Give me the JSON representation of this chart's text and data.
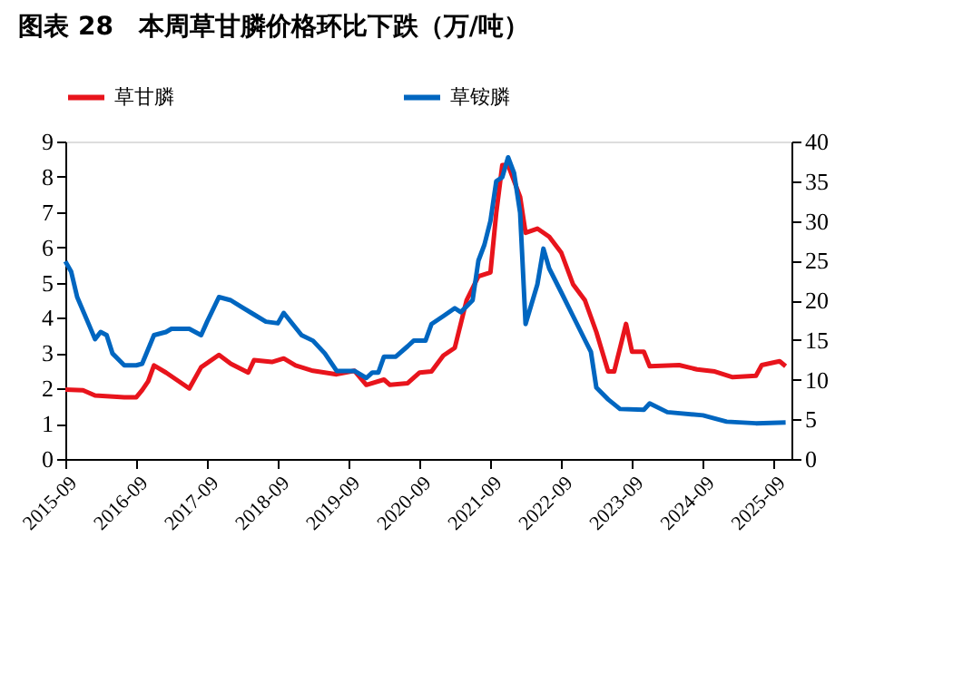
{
  "chart_data": {
    "type": "line",
    "title": "图表 28　本周草甘膦价格环比下跌（万/吨）",
    "xlim": [
      "2015-09",
      "2025-12"
    ],
    "xticks": [
      "2015-09",
      "2016-09",
      "2017-09",
      "2018-09",
      "2019-09",
      "2020-09",
      "2021-09",
      "2022-09",
      "2023-09",
      "2024-09",
      "2025-09"
    ],
    "ylim": [
      0,
      9
    ],
    "yticks": [
      0,
      1,
      2,
      3,
      4,
      5,
      6,
      7,
      8,
      9
    ],
    "y2lim": [
      0,
      40
    ],
    "y2ticks": [
      0,
      5,
      10,
      15,
      20,
      25,
      30,
      35,
      40
    ],
    "grid": false,
    "legend": "top",
    "series": [
      {
        "name": "草甘膦",
        "color": "#e8141c",
        "axis": "y",
        "x": [
          "2015-09",
          "2015-12",
          "2016-02",
          "2016-07",
          "2016-09",
          "2016-10",
          "2016-11",
          "2016-12",
          "2017-02",
          "2017-06",
          "2017-08",
          "2017-11",
          "2018-01",
          "2018-04",
          "2018-05",
          "2018-08",
          "2018-10",
          "2018-12",
          "2019-03",
          "2019-07",
          "2019-10",
          "2019-12",
          "2020-03",
          "2020-04",
          "2020-07",
          "2020-09",
          "2020-11",
          "2021-01",
          "2021-03",
          "2021-05",
          "2021-07",
          "2021-09",
          "2021-10",
          "2021-11",
          "2021-12",
          "2022-02",
          "2022-03",
          "2022-05",
          "2022-07",
          "2022-09",
          "2022-11",
          "2023-01",
          "2023-03",
          "2023-05",
          "2023-06",
          "2023-08",
          "2023-09",
          "2023-11",
          "2023-12",
          "2024-05",
          "2024-08",
          "2024-11",
          "2025-02",
          "2025-06",
          "2025-07",
          "2025-10",
          "2025-11"
        ],
        "values": [
          1.97,
          1.95,
          1.8,
          1.75,
          1.75,
          1.95,
          2.2,
          2.65,
          2.45,
          2.0,
          2.6,
          2.95,
          2.7,
          2.45,
          2.8,
          2.75,
          2.85,
          2.65,
          2.5,
          2.4,
          2.5,
          2.1,
          2.25,
          2.1,
          2.15,
          2.45,
          2.48,
          2.93,
          3.15,
          4.5,
          5.18,
          5.29,
          6.98,
          8.33,
          8.33,
          7.43,
          6.41,
          6.53,
          6.3,
          5.85,
          4.95,
          4.5,
          3.6,
          2.48,
          2.48,
          3.83,
          3.04,
          3.04,
          2.63,
          2.66,
          2.54,
          2.48,
          2.32,
          2.36,
          2.66,
          2.77,
          2.63
        ]
      },
      {
        "name": "草铵膦",
        "color": "#0066c0",
        "axis": "y2",
        "x": [
          "2015-09",
          "2015-10",
          "2015-11",
          "2016-01",
          "2016-02",
          "2016-03",
          "2016-04",
          "2016-05",
          "2016-07",
          "2016-09",
          "2016-10",
          "2016-12",
          "2017-02",
          "2017-03",
          "2017-06",
          "2017-08",
          "2017-09",
          "2017-11",
          "2018-01",
          "2018-03",
          "2018-05",
          "2018-07",
          "2018-09",
          "2018-10",
          "2019-01",
          "2019-03",
          "2019-05",
          "2019-07",
          "2019-10",
          "2019-12",
          "2020-01",
          "2020-02",
          "2020-03",
          "2020-05",
          "2020-07",
          "2020-08",
          "2020-10",
          "2020-11",
          "2021-01",
          "2021-03",
          "2021-04",
          "2021-06",
          "2021-07",
          "2021-08",
          "2021-09",
          "2021-10",
          "2021-11",
          "2021-12",
          "2022-01",
          "2022-02",
          "2022-03",
          "2022-05",
          "2022-06",
          "2022-07",
          "2022-09",
          "2022-11",
          "2023-01",
          "2023-02",
          "2023-03",
          "2023-05",
          "2023-07",
          "2023-11",
          "2023-12",
          "2024-03",
          "2024-09",
          "2024-10",
          "2025-01",
          "2025-06",
          "2025-11"
        ],
        "values": [
          24.9,
          23.6,
          20.4,
          16.9,
          15.1,
          16.0,
          15.6,
          13.3,
          11.8,
          11.8,
          12.0,
          15.6,
          16.0,
          16.4,
          16.4,
          15.6,
          17.3,
          20.4,
          20.0,
          19.1,
          18.2,
          17.3,
          17.1,
          18.4,
          15.6,
          14.9,
          13.3,
          11.1,
          11.1,
          10.2,
          10.9,
          10.9,
          12.9,
          12.9,
          14.2,
          14.9,
          14.9,
          17,
          18,
          19,
          18.5,
          20,
          25,
          27,
          30,
          35,
          35.5,
          38,
          36,
          31,
          17,
          22,
          26.5,
          24,
          21,
          18,
          15,
          13.5,
          9,
          7.5,
          6.3,
          6.2,
          7,
          5.9,
          5.5,
          5.3,
          4.7,
          4.5,
          4.6
        ]
      }
    ]
  }
}
